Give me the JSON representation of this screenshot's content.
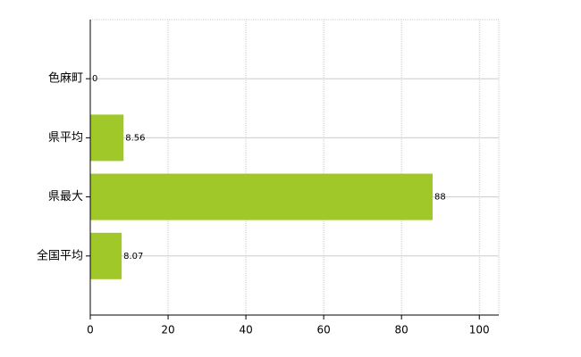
{
  "chart_data": {
    "type": "bar",
    "orientation": "horizontal",
    "categories": [
      "色麻町",
      "県平均",
      "県最大",
      "全国平均"
    ],
    "values": [
      0,
      8.56,
      88,
      8.07
    ],
    "color": "#a0c828",
    "xlim": [
      0,
      105
    ],
    "xticks": [
      0,
      20,
      40,
      60,
      80,
      100
    ],
    "grid": true
  }
}
